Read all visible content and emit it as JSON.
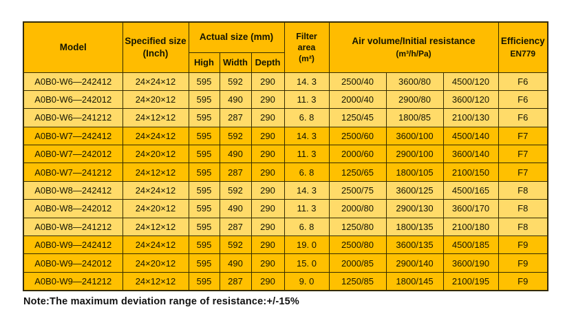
{
  "colors": {
    "header_bg": "#ffbc00",
    "row_light_bg": "#ffdb69",
    "row_dark_bg": "#ffc000",
    "border": "#332a00",
    "text": "#141400",
    "page_bg": "#ffffff"
  },
  "table": {
    "header": {
      "model": "Model",
      "specified_size_line1": "Specified size",
      "specified_size_line2": "(Inch)",
      "actual_size": "Actual size (mm)",
      "sub_columns": [
        "High",
        "Width",
        "Depth"
      ],
      "filter_area_line1": "Filter",
      "filter_area_line2": "area",
      "filter_area_line3": "(m²)",
      "air_volume_line1": "Air volume/Initial resistance",
      "air_volume_line2": "(m³/h/Pa)",
      "efficiency_line1": "Efficiency",
      "efficiency_line2": "EN779"
    },
    "rows": [
      {
        "model": "A0B0-W6—242412",
        "specified": "24×24×12",
        "high": "595",
        "width": "592",
        "depth": "290",
        "area": "14. 3",
        "air": [
          "2500/40",
          "3600/80",
          "4500/120"
        ],
        "efficiency": "F6",
        "shade": "light"
      },
      {
        "model": "A0B0-W6—242012",
        "specified": "24×20×12",
        "high": "595",
        "width": "490",
        "depth": "290",
        "area": "11. 3",
        "air": [
          "2000/40",
          "2900/80",
          "3600/120"
        ],
        "efficiency": "F6",
        "shade": "light"
      },
      {
        "model": "A0B0-W6—241212",
        "specified": "24×12×12",
        "high": "595",
        "width": "287",
        "depth": "290",
        "area": "6. 8",
        "air": [
          "1250/45",
          "1800/85",
          "2100/130"
        ],
        "efficiency": "F6",
        "shade": "light"
      },
      {
        "model": "A0B0-W7—242412",
        "specified": "24×24×12",
        "high": "595",
        "width": "592",
        "depth": "290",
        "area": "14. 3",
        "air": [
          "2500/60",
          "3600/100",
          "4500/140"
        ],
        "efficiency": "F7",
        "shade": "dark"
      },
      {
        "model": "A0B0-W7—242012",
        "specified": "24×20×12",
        "high": "595",
        "width": "490",
        "depth": "290",
        "area": "11. 3",
        "air": [
          "2000/60",
          "2900/100",
          "3600/140"
        ],
        "efficiency": "F7",
        "shade": "dark"
      },
      {
        "model": "A0B0-W7—241212",
        "specified": "24×12×12",
        "high": "595",
        "width": "287",
        "depth": "290",
        "area": "6. 8",
        "air": [
          "1250/65",
          "1800/105",
          "2100/150"
        ],
        "efficiency": "F7",
        "shade": "dark"
      },
      {
        "model": "A0B0-W8—242412",
        "specified": "24×24×12",
        "high": "595",
        "width": "592",
        "depth": "290",
        "area": "14. 3",
        "air": [
          "2500/75",
          "3600/125",
          "4500/165"
        ],
        "efficiency": "F8",
        "shade": "light"
      },
      {
        "model": "A0B0-W8—242012",
        "specified": "24×20×12",
        "high": "595",
        "width": "490",
        "depth": "290",
        "area": "11. 3",
        "air": [
          "2000/80",
          "2900/130",
          "3600/170"
        ],
        "efficiency": "F8",
        "shade": "light"
      },
      {
        "model": "A0B0-W8—241212",
        "specified": "24×12×12",
        "high": "595",
        "width": "287",
        "depth": "290",
        "area": "6. 8",
        "air": [
          "1250/80",
          "1800/135",
          "2100/180"
        ],
        "efficiency": "F8",
        "shade": "light"
      },
      {
        "model": "A0B0-W9—242412",
        "specified": "24×24×12",
        "high": "595",
        "width": "592",
        "depth": "290",
        "area": "19. 0",
        "air": [
          "2500/80",
          "3600/135",
          "4500/185"
        ],
        "efficiency": "F9",
        "shade": "dark"
      },
      {
        "model": "A0B0-W9—242012",
        "specified": "24×20×12",
        "high": "595",
        "width": "490",
        "depth": "290",
        "area": "15. 0",
        "air": [
          "2000/85",
          "2900/140",
          "3600/190"
        ],
        "efficiency": "F9",
        "shade": "dark"
      },
      {
        "model": "A0B0-W9—241212",
        "specified": "24×12×12",
        "high": "595",
        "width": "287",
        "depth": "290",
        "area": "9. 0",
        "air": [
          "1250/85",
          "1800/145",
          "2100/195"
        ],
        "efficiency": "F9",
        "shade": "dark"
      }
    ]
  },
  "note": "Note:The maximum deviation range of resistance:+/-15%"
}
